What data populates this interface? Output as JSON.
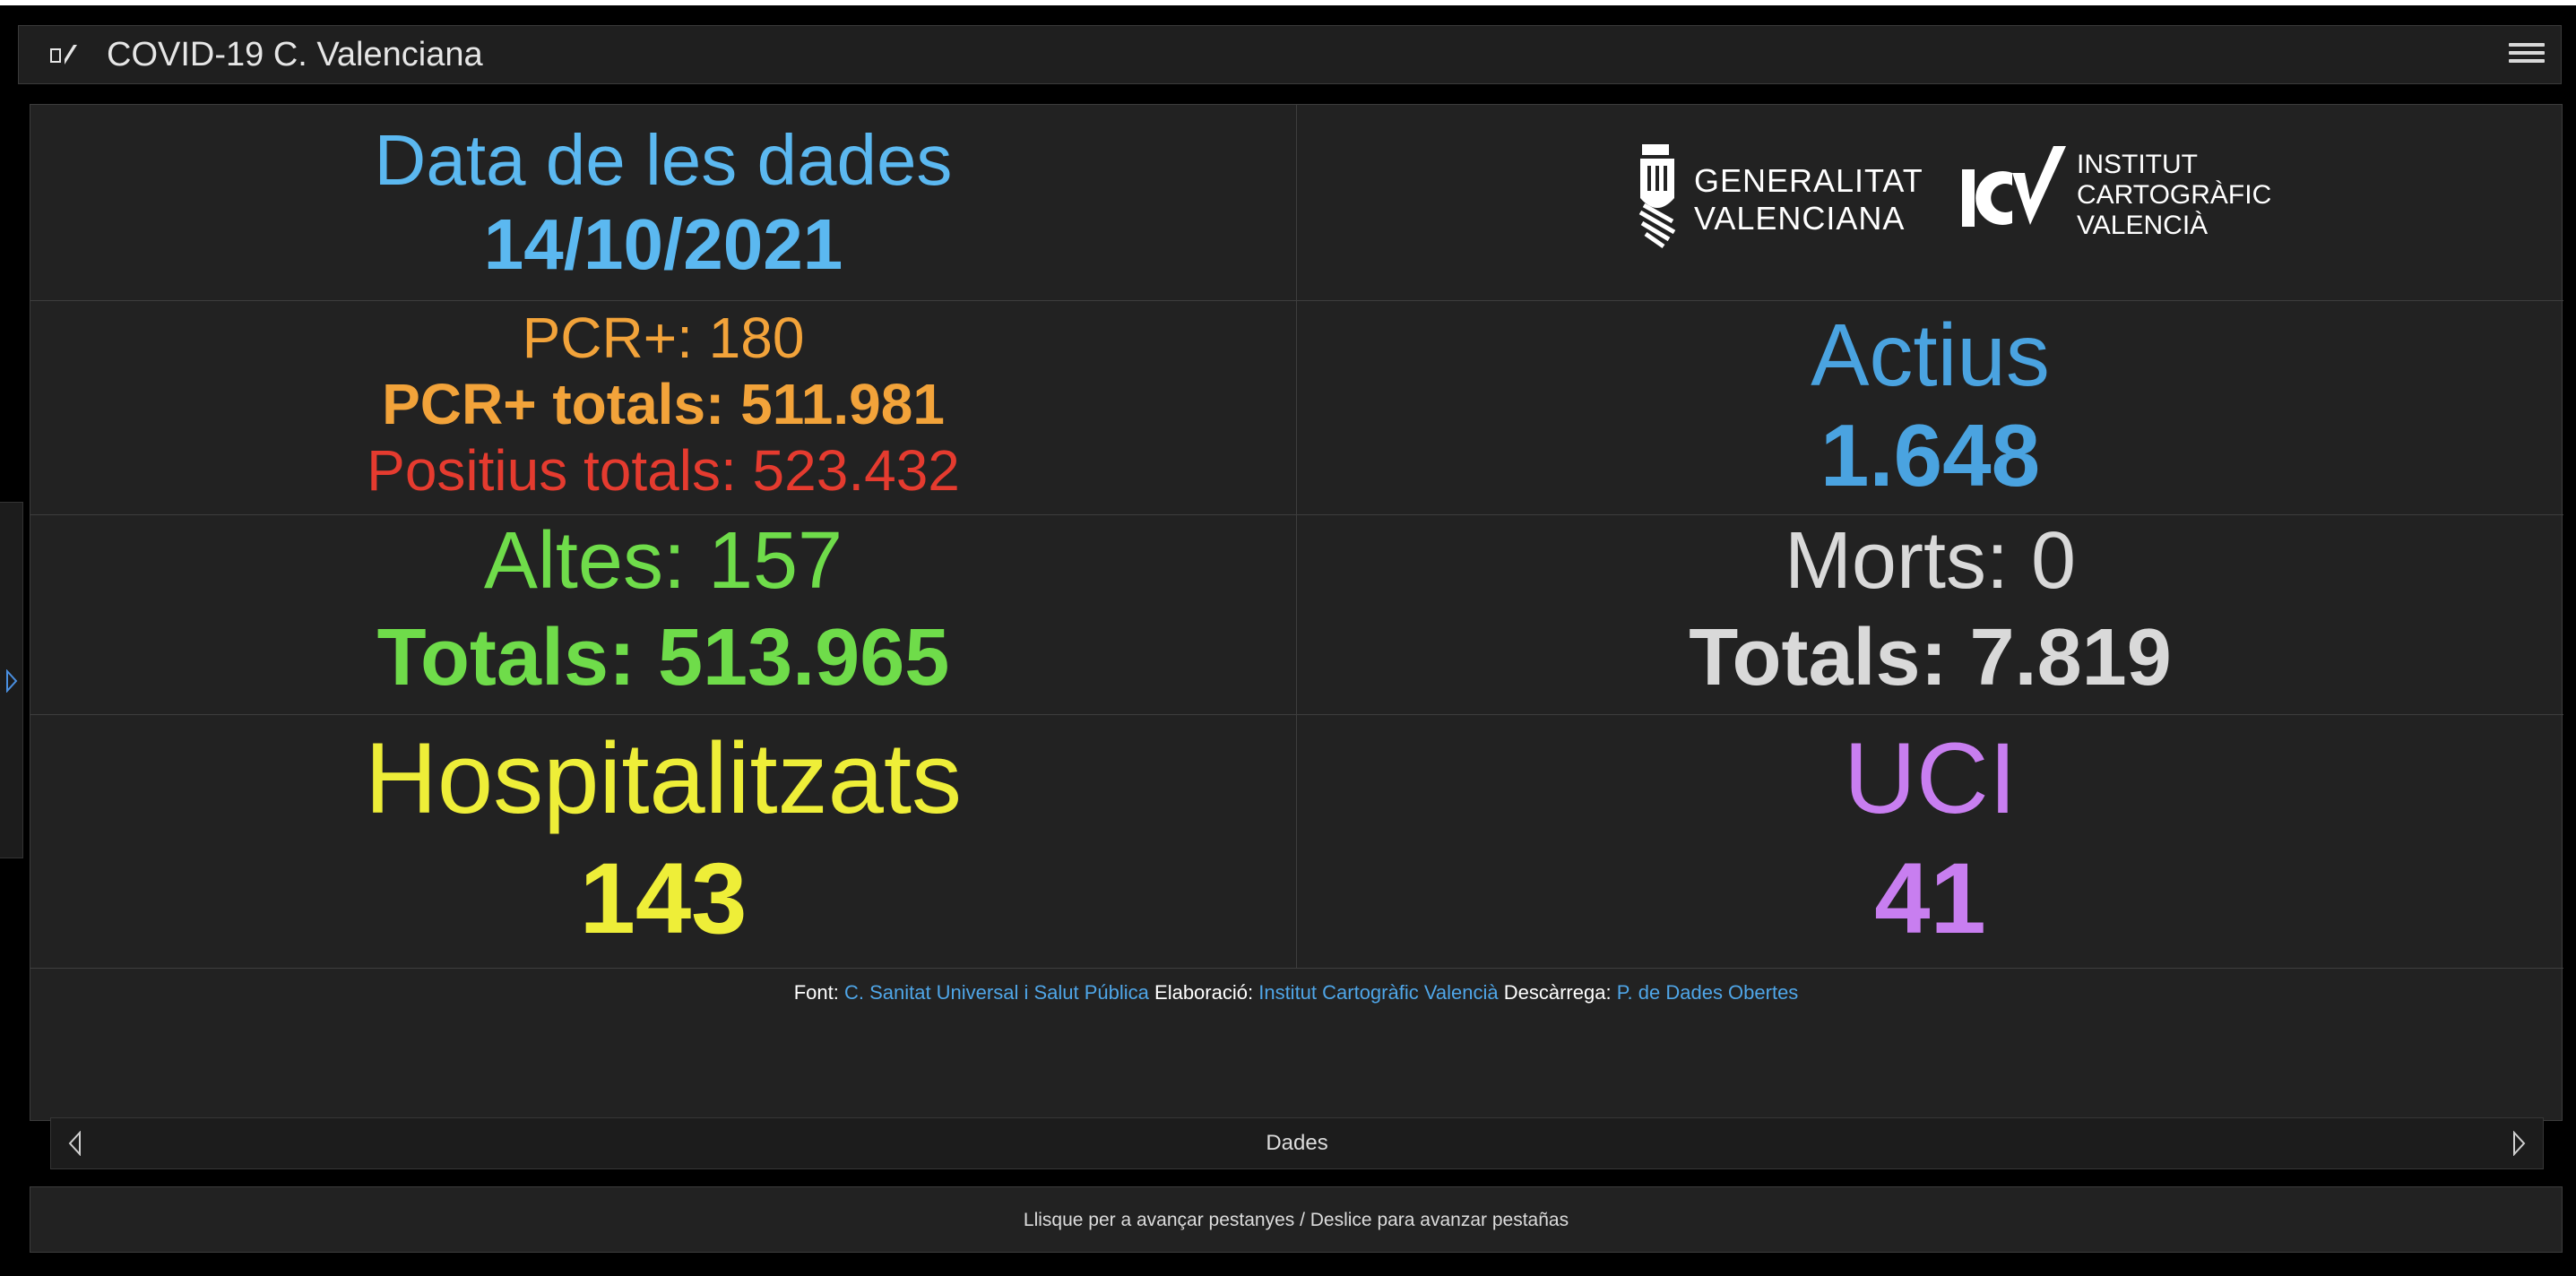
{
  "app": {
    "title": "COVID-19 C. Valenciana"
  },
  "date_block": {
    "label": "Data de les dades",
    "date": "14/10/2021"
  },
  "logos": {
    "generalitat_line1": "GENERALITAT",
    "generalitat_line2": "VALENCIANA",
    "icv_line1": "INSTITUT",
    "icv_line2": "CARTOGRÀFIC",
    "icv_line3": "VALENCIÀ"
  },
  "cases": {
    "pcr": "PCR+: 180",
    "pcr_total": "PCR+ totals: 511.981",
    "positives_total": "Positius totals: 523.432"
  },
  "active": {
    "label": "Actius",
    "value": "1.648"
  },
  "discharges": {
    "label": "Altes: 157",
    "total": "Totals: 513.965"
  },
  "deaths": {
    "label": "Morts: 0",
    "total": "Totals: 7.819"
  },
  "hospital": {
    "label": "Hospitalitzats",
    "value": "143"
  },
  "icu": {
    "label": "UCI",
    "value": "41"
  },
  "footer": {
    "font_label": "Font:",
    "font_link": "C. Sanitat Universal i Salut Pública",
    "elab_label": "Elaboració:",
    "elab_link": "Institut Cartogràfic Valencià",
    "download_label": "Descàrrega:",
    "download_link": "P. de Dades Obertes"
  },
  "tabs": {
    "current": "Dades"
  },
  "swipe_hint": "Llisque per a avançar pestanyes / Deslice para avanzar pestañas",
  "colors": {
    "date": "#5bb8f0",
    "orange": "#f2a33a",
    "red": "#e53b2f",
    "blue": "#4aa3e0",
    "green": "#6fdc4a",
    "light": "#d9d9d9",
    "yellow": "#eeee38",
    "purple": "#c87ef0"
  }
}
